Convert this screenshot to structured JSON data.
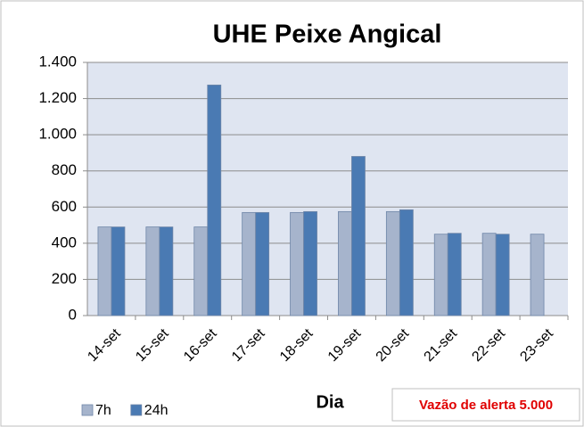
{
  "chart_data": {
    "type": "bar",
    "title": "UHE Peixe Angical",
    "x_label": "Dia",
    "annotation": "Vazão de alerta 5.000",
    "categories": [
      "14-set",
      "15-set",
      "16-set",
      "17-set",
      "18-set",
      "19-set",
      "20-set",
      "21-set",
      "22-set",
      "23-set"
    ],
    "series": [
      {
        "name": "7h",
        "color": "#a6b4cc",
        "values": [
          490,
          490,
          490,
          570,
          570,
          575,
          575,
          450,
          455,
          450
        ]
      },
      {
        "name": "24h",
        "color": "#4a7ab3",
        "values": [
          490,
          490,
          1275,
          570,
          575,
          880,
          585,
          455,
          450,
          null
        ]
      }
    ],
    "ylim": [
      0,
      1400
    ],
    "yticks": [
      0,
      200,
      400,
      600,
      800,
      {
        "value": 1000,
        "label": "1.000"
      },
      {
        "value": 1200,
        "label": "1.200"
      },
      {
        "value": 1400,
        "label": "1.400"
      }
    ],
    "grid": true,
    "legend": "bottom-left"
  }
}
